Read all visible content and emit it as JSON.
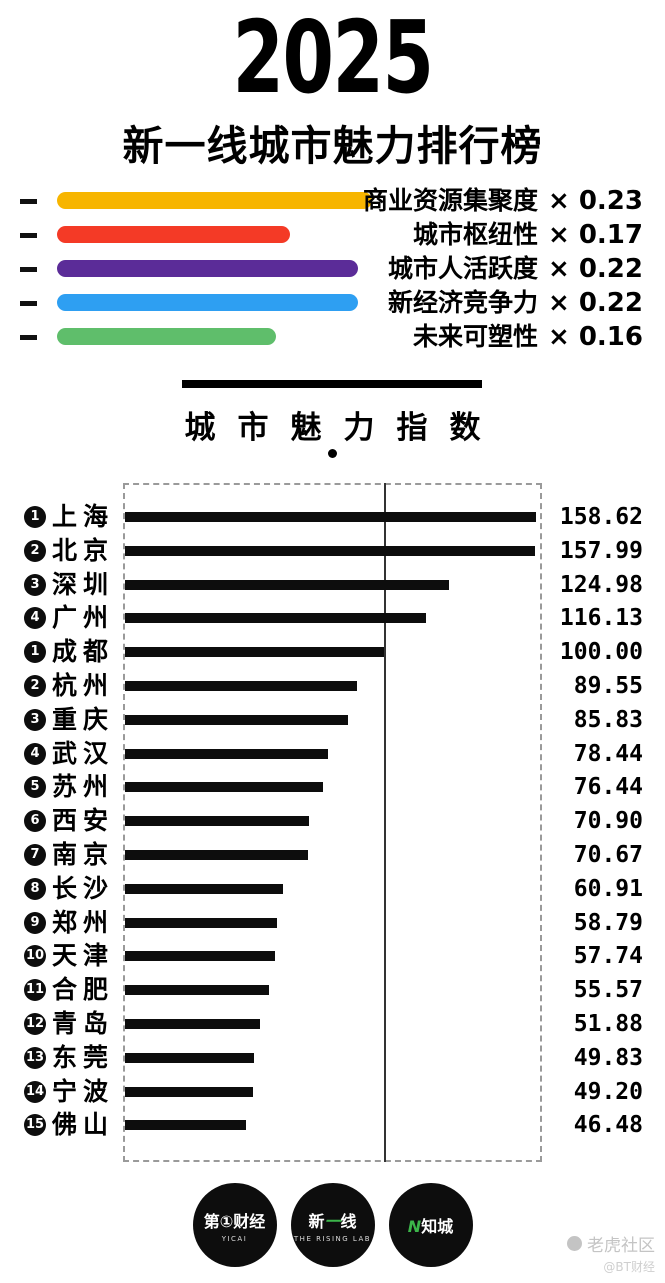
{
  "header": {
    "year": "2025",
    "subtitle": "新一线城市魅力排行榜"
  },
  "legend": {
    "items": [
      {
        "label": "商业资源集聚度",
        "weight": 0.23,
        "color": "#f7b500"
      },
      {
        "label": "城市枢纽性",
        "weight": 0.17,
        "color": "#f43a26"
      },
      {
        "label": "城市人活跃度",
        "weight": 0.22,
        "color": "#5b2c98"
      },
      {
        "label": "新经济竞争力",
        "weight": 0.22,
        "color": "#2e9ff2"
      },
      {
        "label": "未来可塑性",
        "weight": 0.16,
        "color": "#5fbe6b"
      }
    ]
  },
  "chart_data": {
    "type": "bar",
    "title": "城市魅力指数",
    "xlim": [
      0,
      160
    ],
    "reference_line": 100,
    "grid": false,
    "rows": [
      {
        "rank": 1,
        "city": "上海",
        "value": 158.62
      },
      {
        "rank": 2,
        "city": "北京",
        "value": 157.99
      },
      {
        "rank": 3,
        "city": "深圳",
        "value": 124.98
      },
      {
        "rank": 4,
        "city": "广州",
        "value": 116.13
      },
      {
        "rank": 1,
        "city": "成都",
        "value": 100.0
      },
      {
        "rank": 2,
        "city": "杭州",
        "value": 89.55
      },
      {
        "rank": 3,
        "city": "重庆",
        "value": 85.83
      },
      {
        "rank": 4,
        "city": "武汉",
        "value": 78.44
      },
      {
        "rank": 5,
        "city": "苏州",
        "value": 76.44
      },
      {
        "rank": 6,
        "city": "西安",
        "value": 70.9
      },
      {
        "rank": 7,
        "city": "南京",
        "value": 70.67
      },
      {
        "rank": 8,
        "city": "长沙",
        "value": 60.91
      },
      {
        "rank": 9,
        "city": "郑州",
        "value": 58.79
      },
      {
        "rank": 10,
        "city": "天津",
        "value": 57.74
      },
      {
        "rank": 11,
        "city": "合肥",
        "value": 55.57
      },
      {
        "rank": 12,
        "city": "青岛",
        "value": 51.88
      },
      {
        "rank": 13,
        "city": "东莞",
        "value": 49.83
      },
      {
        "rank": 14,
        "city": "宁波",
        "value": 49.2
      },
      {
        "rank": 15,
        "city": "佛山",
        "value": 46.48
      }
    ]
  },
  "footer": {
    "logos": [
      {
        "before": "第①财经",
        "accent": "",
        "after": "",
        "sub": "YICAI"
      },
      {
        "before": "新",
        "accent": "一",
        "after": "线",
        "sub": "THE RISING LAB"
      },
      {
        "before": "",
        "accent": "N",
        "after": "知城",
        "sub": ""
      }
    ],
    "watermark_line1": "老虎社区",
    "watermark_line2": "@BT财经"
  }
}
